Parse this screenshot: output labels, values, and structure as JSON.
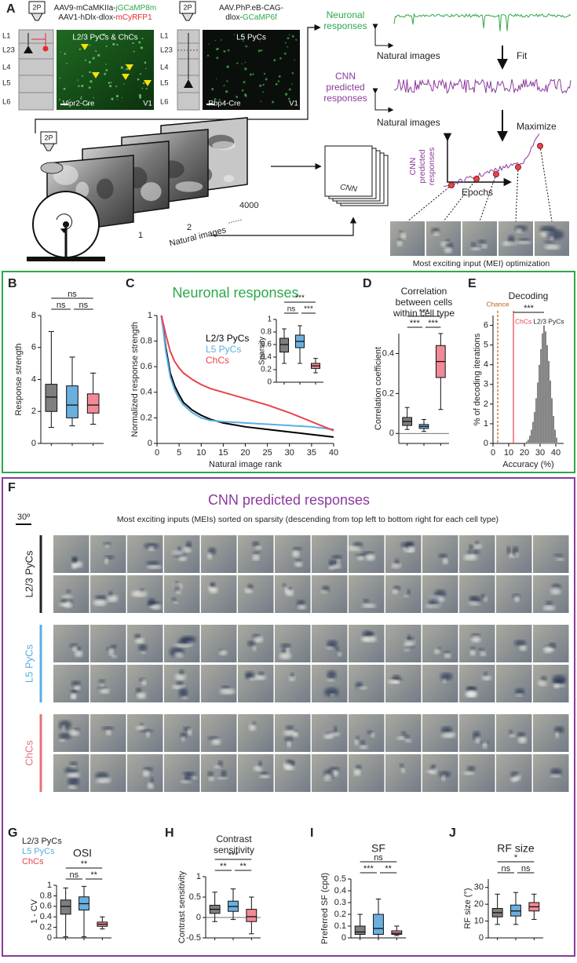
{
  "panel_a": {
    "letter": "A",
    "objective_labels": [
      "2P",
      "2P",
      "2P"
    ],
    "prep_1": {
      "virus_1": [
        "AAV9-mCaMKIIa-",
        "jGCaMP8m"
      ],
      "virus_2": [
        "AAV1-hDlx-dlox-",
        "mCyRFP1"
      ],
      "layers": [
        "L1",
        "L23",
        "L4",
        "L5",
        "L6"
      ],
      "image_label": "L2/3 PyCs & ChCs",
      "line": "Vipr2-Cre",
      "area": "V1"
    },
    "prep_2": {
      "virus_1": [
        "AAV.PhP.eB-CAG-"
      ],
      "virus_2": [
        "dlox-",
        "GCaMP6f"
      ],
      "layers": [
        "L1",
        "L23",
        "L4",
        "L5",
        "L6"
      ],
      "image_label": "L5 PyCs",
      "line": "Rbp4-Cre",
      "area": "V1"
    },
    "stimuli": {
      "image_numbers": [
        "1",
        "2",
        "4000"
      ],
      "ellipsis": "......",
      "label": "Natural images"
    },
    "pipeline": {
      "neuronal_responses": [
        "Neuronal",
        "responses"
      ],
      "x_label_1": "Natural images",
      "fit": "Fit",
      "cnn_predicted": [
        "CNN",
        "predicted",
        "responses"
      ],
      "x_label_2": "Natural images",
      "maximize": "Maximize",
      "cnn": "CNN",
      "cnn_predicted_2": [
        "CNN",
        "predicted",
        "responses"
      ],
      "epochs": "Epochs",
      "mei_caption": "Most exciting input (MEI) optimization"
    }
  },
  "sections": [
    {
      "title": "Neuronal responses",
      "color": "#2ea84a"
    },
    {
      "title": "CNN predicted responses",
      "color": "#8b3a9c"
    }
  ],
  "chart_data": [
    {
      "type": "box",
      "letter": "B",
      "ylabel": "Response strength",
      "ylim": [
        0,
        8
      ],
      "yticks": [
        0,
        2,
        4,
        6,
        8
      ],
      "boxes": [
        {
          "color": "#7f7f7f",
          "low": 1,
          "q1": 2,
          "median": 2.9,
          "q3": 3.7,
          "high": 7
        },
        {
          "color": "#6ab0de",
          "low": 1.1,
          "q1": 1.6,
          "median": 2.4,
          "q3": 3.6,
          "high": 5.4
        },
        {
          "color": "#f08a96",
          "low": 1.2,
          "q1": 1.9,
          "median": 2.4,
          "q3": 3.1,
          "high": 4.4
        }
      ],
      "significance": [
        "ns",
        "ns",
        "ns"
      ]
    },
    {
      "type": "line",
      "letter": "C",
      "xlabel": "Natural image rank",
      "ylabel": "Normalized response strength",
      "x": [
        1,
        2,
        3,
        4,
        5,
        6,
        8,
        10,
        12,
        15,
        20,
        25,
        30,
        35,
        40
      ],
      "series": [
        {
          "name": "L2/3 PyCs",
          "color": "#000000",
          "values": [
            1,
            0.75,
            0.55,
            0.45,
            0.38,
            0.32,
            0.26,
            0.22,
            0.19,
            0.16,
            0.13,
            0.11,
            0.09,
            0.07,
            0.05
          ]
        },
        {
          "name": "L5 PyCs",
          "color": "#5aaee0",
          "values": [
            1,
            0.72,
            0.52,
            0.42,
            0.35,
            0.3,
            0.24,
            0.2,
            0.18,
            0.17,
            0.16,
            0.15,
            0.14,
            0.13,
            0.11
          ]
        },
        {
          "name": "ChCs",
          "color": "#e8434f",
          "values": [
            1,
            0.85,
            0.72,
            0.64,
            0.59,
            0.55,
            0.5,
            0.46,
            0.43,
            0.4,
            0.35,
            0.3,
            0.24,
            0.17,
            0.1
          ]
        }
      ],
      "xlim": [
        0,
        40
      ],
      "ylim": [
        0,
        1
      ],
      "xticks": [
        0,
        5,
        10,
        15,
        20,
        25,
        30,
        35,
        40
      ],
      "yticks": [
        0,
        0.2,
        0.4,
        0.6,
        0.8,
        1
      ]
    },
    {
      "type": "box",
      "ylabel": "Sparsity",
      "ylim": [
        0,
        1
      ],
      "yticks": [
        0,
        0.2,
        0.4,
        0.6,
        0.8,
        1
      ],
      "boxes": [
        {
          "color": "#7f7f7f",
          "low": 0.3,
          "q1": 0.48,
          "median": 0.6,
          "q3": 0.7,
          "high": 0.85
        },
        {
          "color": "#6ab0de",
          "low": 0.3,
          "q1": 0.55,
          "median": 0.65,
          "q3": 0.75,
          "high": 0.9
        },
        {
          "color": "#f08a96",
          "low": 0.15,
          "q1": 0.22,
          "median": 0.26,
          "q3": 0.3,
          "high": 0.38
        }
      ],
      "significance": [
        "***",
        "ns",
        "***"
      ]
    },
    {
      "type": "box",
      "letter": "D",
      "title": [
        "Correlation",
        "between cells",
        "within cell type"
      ],
      "ylabel": "Correlation coefficient",
      "ylim": [
        -0.05,
        0.5
      ],
      "yticks": [
        0,
        0.2,
        0.4
      ],
      "zero_line": true,
      "boxes": [
        {
          "color": "#7f7f7f",
          "low": 0.02,
          "q1": 0.04,
          "median": 0.06,
          "q3": 0.08,
          "high": 0.13
        },
        {
          "color": "#6ab0de",
          "low": 0.01,
          "q1": 0.025,
          "median": 0.035,
          "q3": 0.045,
          "high": 0.07
        },
        {
          "color": "#f08a96",
          "low": 0.12,
          "q1": 0.28,
          "median": 0.36,
          "q3": 0.44,
          "high": 0.5
        }
      ],
      "significance": [
        "***",
        "***",
        "***"
      ]
    },
    {
      "type": "histogram",
      "letter": "E",
      "title": "Decoding",
      "xlabel": "Accuracy (%)",
      "ylabel": "% of decoding iterations",
      "bins": [
        21,
        22,
        23,
        24,
        25,
        26,
        27,
        28,
        29,
        30,
        31,
        32,
        33,
        34,
        35,
        36,
        37,
        38,
        39,
        40,
        41
      ],
      "counts": [
        0.1,
        0.2,
        0.4,
        0.7,
        1.1,
        1.6,
        2.3,
        3.1,
        4,
        4.8,
        5.6,
        6,
        5.7,
        5,
        4.2,
        3.2,
        2.3,
        1.4,
        0.7,
        0.3
      ],
      "color": "#6b6b6b",
      "xlim": [
        0,
        45
      ],
      "xticks": [
        0,
        10,
        20,
        30,
        40
      ],
      "ylim": [
        0,
        6.5
      ],
      "yticks": [
        0,
        1,
        2,
        3,
        4,
        5,
        6
      ],
      "reference_lines": [
        {
          "label": "Chance",
          "value": 3,
          "color": "#b5651d",
          "dashed": true
        },
        {
          "label": "ChCs",
          "value": 13,
          "color": "#e8434f",
          "dashed": false
        }
      ],
      "annotation": "L2/3 PyCs",
      "significance": [
        "***"
      ]
    },
    {
      "type": "box",
      "letter": "G",
      "title": "OSI",
      "ylabel": "1 - CV",
      "ylim": [
        0,
        1
      ],
      "yticks": [
        0,
        0.2,
        0.4,
        0.6,
        0.8,
        1
      ],
      "legend": [
        "L2/3 PyCs",
        "L5 PyCs",
        "ChCs"
      ],
      "legend_colors": [
        "#222222",
        "#5aaee0",
        "#e8434f"
      ],
      "boxes": [
        {
          "color": "#7f7f7f",
          "low": 0.02,
          "q1": 0.45,
          "median": 0.6,
          "q3": 0.72,
          "high": 0.95
        },
        {
          "color": "#6ab0de",
          "low": 0.02,
          "q1": 0.53,
          "median": 0.65,
          "q3": 0.78,
          "high": 0.98
        },
        {
          "color": "#f08a96",
          "low": 0.17,
          "q1": 0.22,
          "median": 0.26,
          "q3": 0.3,
          "high": 0.4
        }
      ],
      "significance": [
        "**",
        "ns",
        "**"
      ]
    },
    {
      "type": "box",
      "letter": "H",
      "title": [
        "Contrast",
        "sensitivity"
      ],
      "ylabel": "Contrast sensitivity",
      "ylim": [
        -0.5,
        1
      ],
      "yticks": [
        -0.5,
        0,
        0.5,
        1
      ],
      "zero_line": true,
      "boxes": [
        {
          "color": "#7f7f7f",
          "low": -0.1,
          "q1": 0.1,
          "median": 0.2,
          "q3": 0.3,
          "high": 0.62
        },
        {
          "color": "#6ab0de",
          "low": -0.05,
          "q1": 0.15,
          "median": 0.27,
          "q3": 0.4,
          "high": 0.7
        },
        {
          "color": "#f08a96",
          "low": -0.4,
          "q1": -0.1,
          "median": 0.02,
          "q3": 0.2,
          "high": 0.5
        }
      ],
      "significance": [
        "***",
        "**",
        "**"
      ]
    },
    {
      "type": "box",
      "letter": "I",
      "title": "SF",
      "ylabel": "Preferred SF (cpd)",
      "ylim": [
        0,
        0.5
      ],
      "yticks": [
        0,
        0.1,
        0.2,
        0.3,
        0.4,
        0.5
      ],
      "boxes": [
        {
          "color": "#7f7f7f",
          "low": 0,
          "q1": 0.03,
          "median": 0.05,
          "q3": 0.1,
          "high": 0.2
        },
        {
          "color": "#6ab0de",
          "low": 0,
          "q1": 0.03,
          "median": 0.08,
          "q3": 0.2,
          "high": 0.33
        },
        {
          "color": "#f08a96",
          "low": 0.02,
          "q1": 0.03,
          "median": 0.04,
          "q3": 0.06,
          "high": 0.1
        }
      ],
      "significance": [
        "ns",
        "***",
        "**"
      ]
    },
    {
      "type": "box",
      "letter": "J",
      "title": "RF size",
      "ylabel": "RF size (°)",
      "ylim": [
        0,
        35
      ],
      "yticks": [
        0,
        10,
        20,
        30
      ],
      "boxes": [
        {
          "color": "#7f7f7f",
          "low": 8,
          "q1": 12.5,
          "median": 15,
          "q3": 17.5,
          "high": 26
        },
        {
          "color": "#6ab0de",
          "low": 8,
          "q1": 13,
          "median": 16,
          "q3": 19.5,
          "high": 27
        },
        {
          "color": "#f08a96",
          "low": 11,
          "q1": 16,
          "median": 18.5,
          "q3": 21,
          "high": 26
        }
      ],
      "significance": [
        "*",
        "ns",
        "ns"
      ]
    }
  ],
  "panel_f": {
    "letter": "F",
    "scale": "30º",
    "caption": "Most exciting inputs (MEIs) sorted on sparsity (descending from top left to bottom right for each cell type)",
    "rows": [
      "L2/3 PyCs",
      "L5 PyCs",
      "ChCs"
    ],
    "row_colors": [
      "#222222",
      "#5aaee0",
      "#e8707e"
    ]
  }
}
